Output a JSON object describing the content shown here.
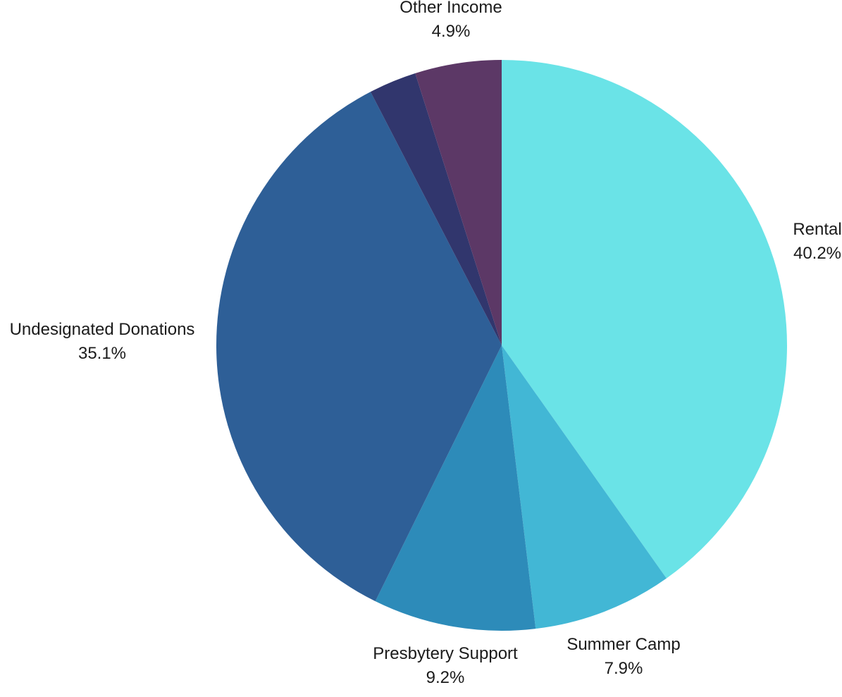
{
  "chart_data": {
    "type": "pie",
    "title": "",
    "slices": [
      {
        "label": "Rental",
        "percent_label": "40.2%",
        "value": 40.2,
        "color": "#6ae3e7"
      },
      {
        "label": "Summer Camp",
        "percent_label": "7.9%",
        "value": 7.9,
        "color": "#42b7d5"
      },
      {
        "label": "Presbytery Support",
        "percent_label": "9.2%",
        "value": 9.2,
        "color": "#2d8bb9"
      },
      {
        "label": "Undesignated Donations",
        "percent_label": "35.1%",
        "value": 35.1,
        "color": "#2e5f97"
      },
      {
        "label": "",
        "percent_label": "",
        "value": 2.7,
        "color": "#31366d"
      },
      {
        "label": "Other Income",
        "percent_label": "4.9%",
        "value": 4.9,
        "color": "#5c3866"
      }
    ],
    "start_angle_deg": 0,
    "direction": "clockwise",
    "legend": "none"
  }
}
